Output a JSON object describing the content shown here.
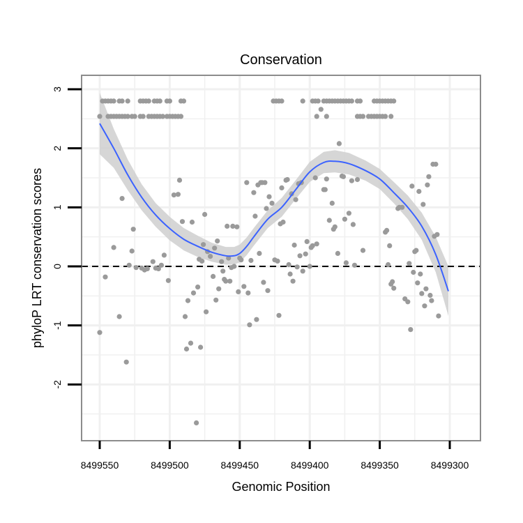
{
  "chart_data": {
    "type": "scatter",
    "title": "Conservation",
    "xlabel": "Genomic Position",
    "ylabel": "phyloP LRT conservation scores",
    "x_reversed": true,
    "xlim": [
      8499565,
      8499292
    ],
    "ylim": [
      -2.9,
      3.2
    ],
    "x_ticks": [
      8499550,
      8499500,
      8499450,
      8499400,
      8499350,
      8499300
    ],
    "x_tick_labels": [
      "8499550",
      "8499500",
      "8499450",
      "8499400",
      "8499350",
      "8499300"
    ],
    "y_ticks": [
      3,
      2,
      1,
      0,
      -1,
      -2
    ],
    "y_tick_labels": [
      "3",
      "2",
      "1",
      "0",
      "-1",
      "-2"
    ],
    "reference_line": {
      "y": 0,
      "style": "dashed"
    },
    "colors": {
      "points": "#9a9a9a",
      "smooth": "#3b62ff",
      "ribbon": "#cfcfcf",
      "frame": "#8c8c8c",
      "grid": "#f0f0f0",
      "refline": "#000000"
    },
    "points": [
      [
        8499548,
        2.8
      ],
      [
        8499546,
        2.8
      ],
      [
        8499544,
        2.8
      ],
      [
        8499542,
        2.8
      ],
      [
        8499540,
        2.8
      ],
      [
        8499536,
        2.8
      ],
      [
        8499534,
        2.8
      ],
      [
        8499530,
        2.8
      ],
      [
        8499521,
        2.8
      ],
      [
        8499519,
        2.8
      ],
      [
        8499517,
        2.8
      ],
      [
        8499515,
        2.8
      ],
      [
        8499511,
        2.8
      ],
      [
        8499509,
        2.8
      ],
      [
        8499507,
        2.8
      ],
      [
        8499502,
        2.8
      ],
      [
        8499500,
        2.8
      ],
      [
        8499492,
        2.8
      ],
      [
        8499490,
        2.8
      ],
      [
        8499550,
        2.54
      ],
      [
        8499544,
        2.54
      ],
      [
        8499542,
        2.54
      ],
      [
        8499540,
        2.54
      ],
      [
        8499538,
        2.54
      ],
      [
        8499536,
        2.54
      ],
      [
        8499534,
        2.54
      ],
      [
        8499532,
        2.54
      ],
      [
        8499530,
        2.54
      ],
      [
        8499527,
        2.54
      ],
      [
        8499525,
        2.54
      ],
      [
        8499521,
        2.54
      ],
      [
        8499519,
        2.54
      ],
      [
        8499515,
        2.54
      ],
      [
        8499513,
        2.54
      ],
      [
        8499511,
        2.54
      ],
      [
        8499509,
        2.54
      ],
      [
        8499507,
        2.54
      ],
      [
        8499505,
        2.54
      ],
      [
        8499502,
        2.54
      ],
      [
        8499500,
        2.54
      ],
      [
        8499498,
        2.54
      ],
      [
        8499496,
        2.54
      ],
      [
        8499494,
        2.54
      ],
      [
        8499492,
        2.54
      ],
      [
        8499426,
        2.8
      ],
      [
        8499424,
        2.8
      ],
      [
        8499422,
        2.8
      ],
      [
        8499420,
        2.8
      ],
      [
        8499405,
        2.8
      ],
      [
        8499398,
        2.8
      ],
      [
        8499396,
        2.8
      ],
      [
        8499394,
        2.8
      ],
      [
        8499390,
        2.8
      ],
      [
        8499388,
        2.8
      ],
      [
        8499386,
        2.8
      ],
      [
        8499384,
        2.8
      ],
      [
        8499382,
        2.8
      ],
      [
        8499380,
        2.8
      ],
      [
        8499378,
        2.8
      ],
      [
        8499376,
        2.8
      ],
      [
        8499374,
        2.8
      ],
      [
        8499372,
        2.8
      ],
      [
        8499370,
        2.8
      ],
      [
        8499366,
        2.8
      ],
      [
        8499364,
        2.8
      ],
      [
        8499354,
        2.8
      ],
      [
        8499352,
        2.8
      ],
      [
        8499350,
        2.8
      ],
      [
        8499348,
        2.8
      ],
      [
        8499346,
        2.8
      ],
      [
        8499344,
        2.8
      ],
      [
        8499342,
        2.8
      ],
      [
        8499340,
        2.8
      ],
      [
        8499392,
        2.66
      ],
      [
        8499395,
        2.54
      ],
      [
        8499388,
        2.54
      ],
      [
        8499366,
        2.54
      ],
      [
        8499364,
        2.54
      ],
      [
        8499362,
        2.54
      ],
      [
        8499358,
        2.54
      ],
      [
        8499356,
        2.54
      ],
      [
        8499354,
        2.54
      ],
      [
        8499352,
        2.54
      ],
      [
        8499350,
        2.54
      ],
      [
        8499348,
        2.54
      ],
      [
        8499346,
        2.54
      ],
      [
        8499342,
        2.54
      ],
      [
        8499550,
        -1.12
      ],
      [
        8499546,
        -0.18
      ],
      [
        8499540,
        0.32
      ],
      [
        8499536,
        -0.85
      ],
      [
        8499534,
        1.15
      ],
      [
        8499531,
        -1.62
      ],
      [
        8499529,
        0.02
      ],
      [
        8499527,
        0.26
      ],
      [
        8499526,
        0.63
      ],
      [
        8499524,
        -0.02
      ],
      [
        8499520,
        -0.03
      ],
      [
        8499518,
        -0.06
      ],
      [
        8499516,
        -0.04
      ],
      [
        8499512,
        0.08
      ],
      [
        8499510,
        -0.03
      ],
      [
        8499508,
        -0.04
      ],
      [
        8499506,
        0.02
      ],
      [
        8499504,
        0.19
      ],
      [
        8499501,
        -0.24
      ],
      [
        8499497,
        1.21
      ],
      [
        8499494,
        1.22
      ],
      [
        8499493,
        1.46
      ],
      [
        8499491,
        0.76
      ],
      [
        8499489,
        -0.85
      ],
      [
        8499488,
        -1.4
      ],
      [
        8499487,
        -0.58
      ],
      [
        8499485,
        -1.3
      ],
      [
        8499484,
        0.75
      ],
      [
        8499483,
        -0.45
      ],
      [
        8499481,
        -2.65
      ],
      [
        8499480,
        -0.35
      ],
      [
        8499479,
        0.12
      ],
      [
        8499478,
        -1.37
      ],
      [
        8499477,
        0.09
      ],
      [
        8499476,
        0.37
      ],
      [
        8499475,
        0.88
      ],
      [
        8499474,
        -0.77
      ],
      [
        8499473,
        0.25
      ],
      [
        8499471,
        0.17
      ],
      [
        8499469,
        -0.17
      ],
      [
        8499468,
        0.31
      ],
      [
        8499467,
        -0.57
      ],
      [
        8499466,
        0.43
      ],
      [
        8499465,
        -0.38
      ],
      [
        8499463,
        0.08
      ],
      [
        8499462,
        -0.08
      ],
      [
        8499461,
        -0.22
      ],
      [
        8499460,
        -0.25
      ],
      [
        8499459,
        0.68
      ],
      [
        8499458,
        0.14
      ],
      [
        8499457,
        -0.25
      ],
      [
        8499456,
        -0.02
      ],
      [
        8499455,
        0.68
      ],
      [
        8499454,
        0.0
      ],
      [
        8499452,
        0.67
      ],
      [
        8499451,
        -0.43
      ],
      [
        8499450,
        0.14
      ],
      [
        8499449,
        0.11
      ],
      [
        8499447,
        -0.34
      ],
      [
        8499445,
        1.42
      ],
      [
        8499444,
        -0.45
      ],
      [
        8499443,
        -0.99
      ],
      [
        8499442,
        0.1
      ],
      [
        8499440,
        1.25
      ],
      [
        8499439,
        0.85
      ],
      [
        8499438,
        -0.9
      ],
      [
        8499437,
        1.38
      ],
      [
        8499436,
        0.22
      ],
      [
        8499435,
        1.42
      ],
      [
        8499434,
        1.42
      ],
      [
        8499433,
        -0.27
      ],
      [
        8499432,
        1.42
      ],
      [
        8499431,
        0.98
      ],
      [
        8499430,
        -0.41
      ],
      [
        8499429,
        1.18
      ],
      [
        8499427,
        1.07
      ],
      [
        8499425,
        0.11
      ],
      [
        8499423,
        0.09
      ],
      [
        8499422,
        -0.83
      ],
      [
        8499421,
        0.72
      ],
      [
        8499420,
        1.33
      ],
      [
        8499419,
        0.75
      ],
      [
        8499417,
        1.46
      ],
      [
        8499416,
        1.47
      ],
      [
        8499415,
        0.03
      ],
      [
        8499414,
        -0.13
      ],
      [
        8499413,
        1.23
      ],
      [
        8499412,
        -0.25
      ],
      [
        8499411,
        0.36
      ],
      [
        8499410,
        1.13
      ],
      [
        8499409,
        -0.01
      ],
      [
        8499408,
        1.4
      ],
      [
        8499407,
        0.18
      ],
      [
        8499406,
        1.42
      ],
      [
        8499405,
        -0.08
      ],
      [
        8499403,
        0.21
      ],
      [
        8499402,
        0.42
      ],
      [
        8499400,
        0.0
      ],
      [
        8499399,
        0.32
      ],
      [
        8499398,
        0.35
      ],
      [
        8499396,
        1.5
      ],
      [
        8499395,
        0.38
      ],
      [
        8499390,
        1.3
      ],
      [
        8499389,
        1.3
      ],
      [
        8499388,
        1.48
      ],
      [
        8499386,
        0.78
      ],
      [
        8499384,
        1.07
      ],
      [
        8499383,
        0.63
      ],
      [
        8499382,
        0.67
      ],
      [
        8499380,
        0.22
      ],
      [
        8499379,
        2.08
      ],
      [
        8499377,
        1.53
      ],
      [
        8499376,
        1.52
      ],
      [
        8499375,
        0.8
      ],
      [
        8499374,
        0.06
      ],
      [
        8499372,
        0.9
      ],
      [
        8499370,
        1.45
      ],
      [
        8499369,
        0.71
      ],
      [
        8499368,
        0.02
      ],
      [
        8499366,
        1.47
      ],
      [
        8499362,
        0.27
      ],
      [
        8499346,
        0.58
      ],
      [
        8499345,
        0.61
      ],
      [
        8499344,
        0.03
      ],
      [
        8499343,
        0.35
      ],
      [
        8499342,
        -0.3
      ],
      [
        8499341,
        -0.26
      ],
      [
        8499340,
        -0.37
      ],
      [
        8499337,
        0.98
      ],
      [
        8499336,
        1.0
      ],
      [
        8499334,
        1.0
      ],
      [
        8499332,
        -0.55
      ],
      [
        8499330,
        -0.6
      ],
      [
        8499329,
        0.05
      ],
      [
        8499328,
        -1.07
      ],
      [
        8499327,
        1.36
      ],
      [
        8499326,
        -0.1
      ],
      [
        8499325,
        0.25
      ],
      [
        8499324,
        0.27
      ],
      [
        8499323,
        -0.28
      ],
      [
        8499322,
        1.27
      ],
      [
        8499321,
        -0.13
      ],
      [
        8499320,
        -0.46
      ],
      [
        8499319,
        1.05
      ],
      [
        8499318,
        -0.67
      ],
      [
        8499317,
        -0.38
      ],
      [
        8499316,
        1.38
      ],
      [
        8499315,
        1.52
      ],
      [
        8499314,
        -0.49
      ],
      [
        8499313,
        -0.58
      ],
      [
        8499312,
        1.73
      ],
      [
        8499311,
        0.51
      ],
      [
        8499310,
        1.73
      ],
      [
        8499309,
        0.54
      ],
      [
        8499308,
        -0.84
      ]
    ],
    "smooth": [
      [
        8499550,
        2.42
      ],
      [
        8499540,
        2.0
      ],
      [
        8499530,
        1.55
      ],
      [
        8499520,
        1.17
      ],
      [
        8499510,
        0.87
      ],
      [
        8499500,
        0.64
      ],
      [
        8499490,
        0.46
      ],
      [
        8499480,
        0.34
      ],
      [
        8499470,
        0.24
      ],
      [
        8499460,
        0.18
      ],
      [
        8499454,
        0.18
      ],
      [
        8499450,
        0.22
      ],
      [
        8499445,
        0.34
      ],
      [
        8499440,
        0.5
      ],
      [
        8499430,
        0.8
      ],
      [
        8499420,
        1.0
      ],
      [
        8499410,
        1.3
      ],
      [
        8499400,
        1.6
      ],
      [
        8499390,
        1.76
      ],
      [
        8499382,
        1.78
      ],
      [
        8499372,
        1.74
      ],
      [
        8499360,
        1.62
      ],
      [
        8499350,
        1.48
      ],
      [
        8499340,
        1.25
      ],
      [
        8499330,
        1.0
      ],
      [
        8499320,
        0.68
      ],
      [
        8499310,
        0.2
      ],
      [
        8499301,
        -0.42
      ]
    ],
    "ribbon_halfwidth": [
      [
        8499550,
        0.52
      ],
      [
        8499540,
        0.33
      ],
      [
        8499530,
        0.26
      ],
      [
        8499520,
        0.22
      ],
      [
        8499510,
        0.2
      ],
      [
        8499500,
        0.2
      ],
      [
        8499490,
        0.19
      ],
      [
        8499480,
        0.18
      ],
      [
        8499470,
        0.16
      ],
      [
        8499460,
        0.15
      ],
      [
        8499450,
        0.15
      ],
      [
        8499440,
        0.15
      ],
      [
        8499430,
        0.15
      ],
      [
        8499420,
        0.16
      ],
      [
        8499410,
        0.16
      ],
      [
        8499400,
        0.17
      ],
      [
        8499390,
        0.18
      ],
      [
        8499380,
        0.19
      ],
      [
        8499370,
        0.18
      ],
      [
        8499360,
        0.17
      ],
      [
        8499350,
        0.17
      ],
      [
        8499340,
        0.18
      ],
      [
        8499330,
        0.2
      ],
      [
        8499320,
        0.23
      ],
      [
        8499310,
        0.3
      ],
      [
        8499301,
        0.42
      ]
    ]
  }
}
